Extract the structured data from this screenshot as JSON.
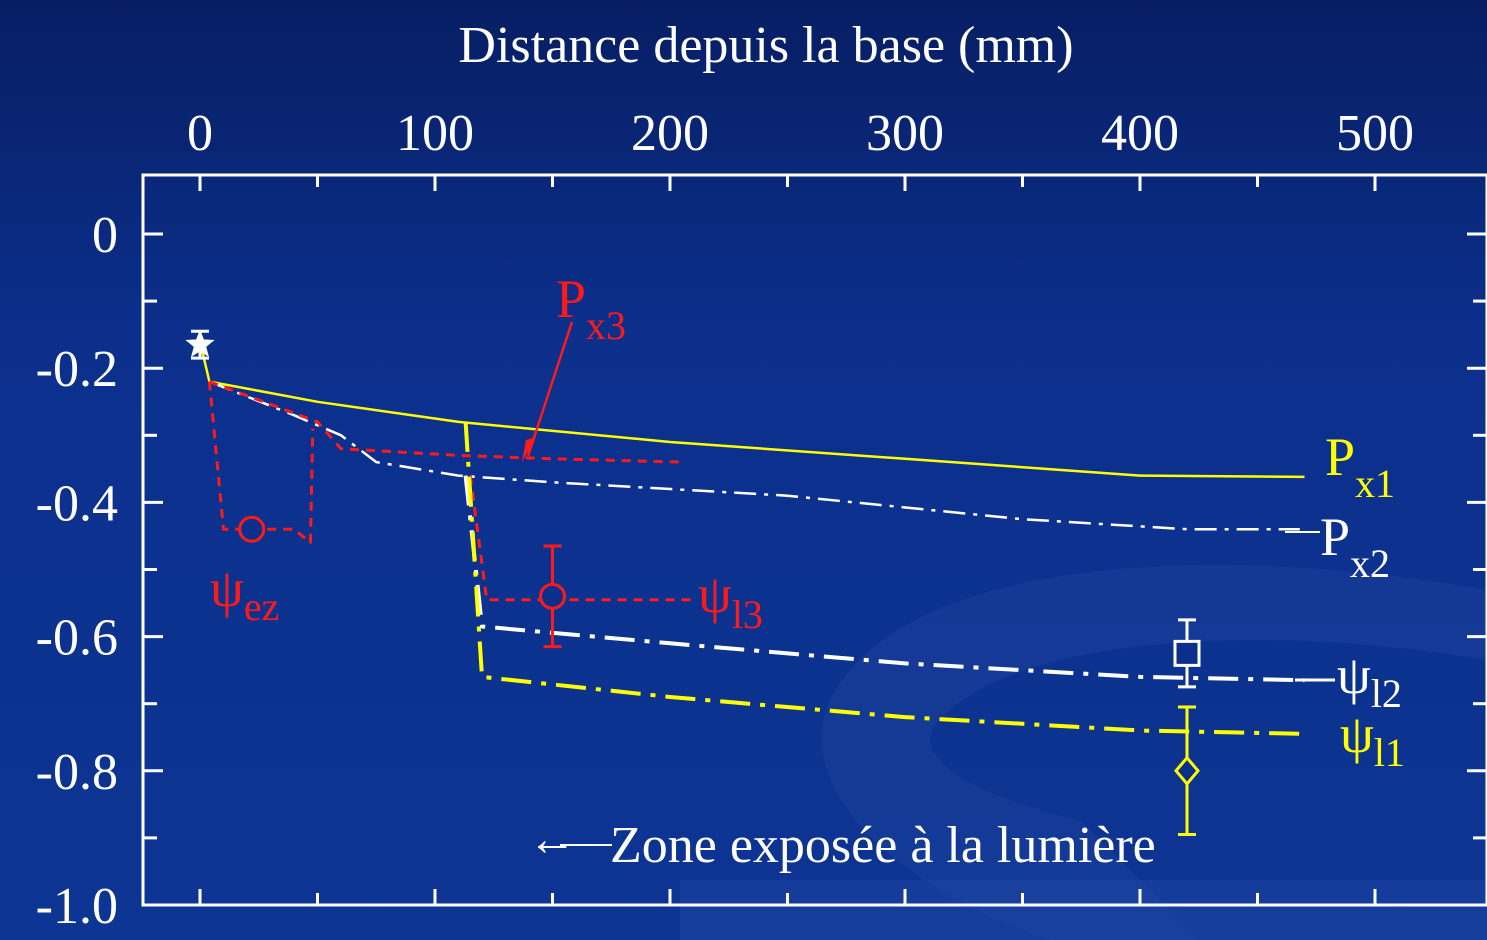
{
  "chart_data": {
    "type": "line",
    "title": "",
    "xlabel": "Distance depuis la base (mm)",
    "ylabel": "",
    "xlim": [
      0,
      500
    ],
    "ylim": [
      -1.0,
      0.0
    ],
    "x_ticks": [
      "0",
      "100",
      "200",
      "300",
      "400",
      "500"
    ],
    "y_ticks": [
      "0",
      "-0.2",
      "-0.4",
      "-0.6",
      "-0.8",
      "-1.0"
    ],
    "series": [
      {
        "name": "P",
        "subscript": "x1",
        "color": "#ffff00",
        "style": "solid",
        "x": [
          0,
          4,
          50,
          110,
          200,
          300,
          400,
          470
        ],
        "y": [
          -0.16,
          -0.22,
          -0.25,
          -0.28,
          -0.31,
          -0.335,
          -0.36,
          -0.362
        ]
      },
      {
        "name": "P",
        "subscript": "x2",
        "color": "#ffffff",
        "style": "dashdot-thin",
        "x": [
          4,
          40,
          60,
          75,
          110,
          150,
          250,
          350,
          420,
          468
        ],
        "y": [
          -0.22,
          -0.27,
          -0.3,
          -0.34,
          -0.36,
          -0.37,
          -0.39,
          -0.425,
          -0.44,
          -0.44
        ]
      },
      {
        "name": "P",
        "subscript": "x3",
        "color": "#ff1a1a",
        "style": "dashed",
        "x": [
          4,
          50,
          60,
          110,
          150,
          205
        ],
        "y": [
          -0.22,
          -0.28,
          -0.32,
          -0.33,
          -0.335,
          -0.34
        ]
      },
      {
        "name": "ψ",
        "subscript": "ez",
        "color": "#ff1a1a",
        "style": "dashed",
        "x": [
          4,
          10,
          25,
          40,
          47,
          48
        ],
        "y": [
          -0.22,
          -0.44,
          -0.44,
          -0.44,
          -0.46,
          -0.29
        ]
      },
      {
        "name": "ψ",
        "subscript": "l3",
        "color": "#ff1a1a",
        "style": "dashed",
        "x": [
          115,
          122,
          150,
          210
        ],
        "y": [
          -0.36,
          -0.545,
          -0.545,
          -0.545
        ]
      },
      {
        "name": "ψ",
        "subscript": "l2",
        "color": "#ffffff",
        "style": "dashdot",
        "x": [
          113,
          120,
          200,
          300,
          400,
          470
        ],
        "y": [
          -0.36,
          -0.585,
          -0.61,
          -0.64,
          -0.66,
          -0.665
        ]
      },
      {
        "name": "ψ",
        "subscript": "l1",
        "color": "#ffff00",
        "style": "dashdot",
        "x": [
          113,
          120,
          200,
          300,
          400,
          470
        ],
        "y": [
          -0.28,
          -0.66,
          -0.69,
          -0.72,
          -0.74,
          -0.745
        ]
      }
    ],
    "markers": [
      {
        "shape": "star",
        "color": "#ffffff",
        "x": 0,
        "y": -0.165,
        "err": 0.02
      },
      {
        "shape": "circle",
        "color": "#ff1a1a",
        "x": 22,
        "y": -0.44,
        "err": 0
      },
      {
        "shape": "circle",
        "color": "#ff1a1a",
        "x": 150,
        "y": -0.54,
        "err": 0.075
      },
      {
        "shape": "square",
        "color": "#ffffff",
        "x": 420,
        "y": -0.625,
        "err": 0.05
      },
      {
        "shape": "diamond",
        "color": "#ffff00",
        "x": 420,
        "y": -0.8,
        "err": 0.095
      }
    ],
    "annotations": {
      "zone_text": "Zone exposée à la lumière",
      "zone_arrow": "←"
    }
  }
}
